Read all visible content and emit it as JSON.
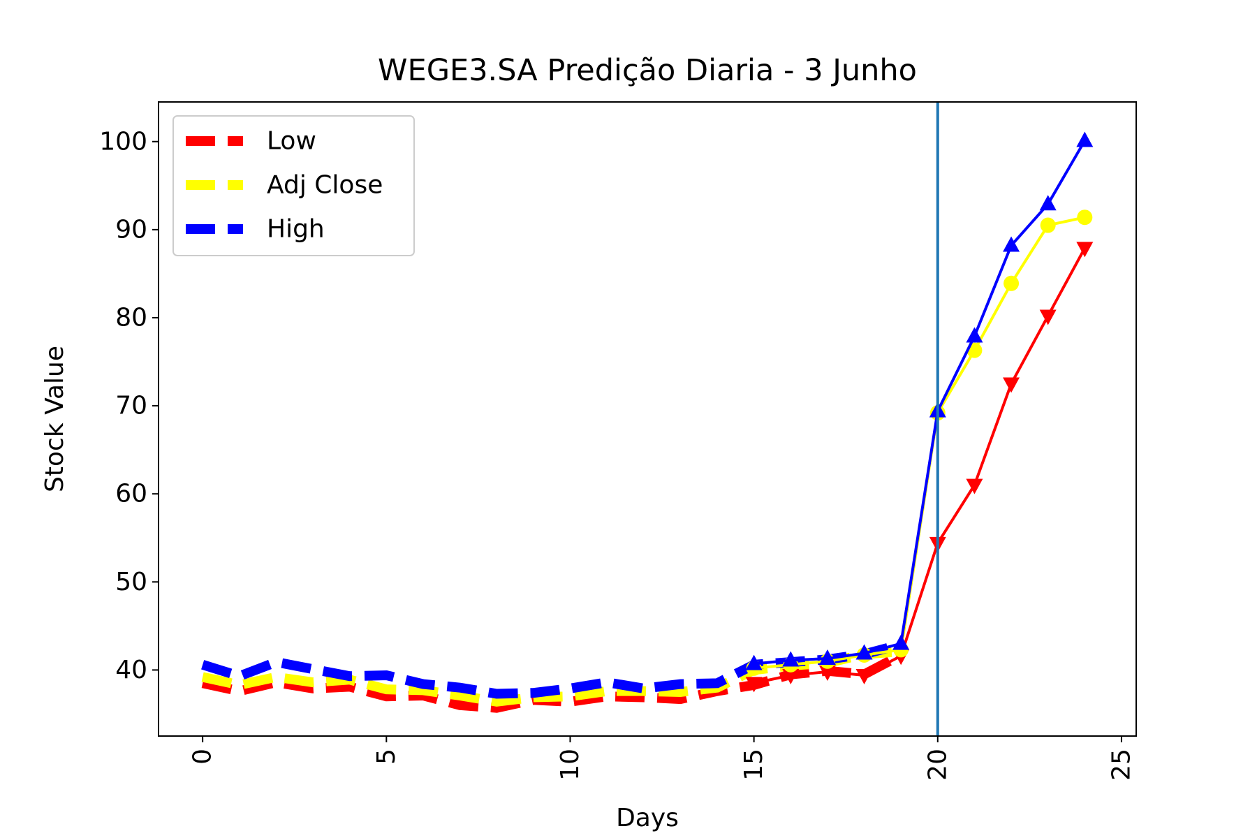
{
  "chart_data": {
    "type": "line",
    "title": "WEGE3.SA Predição Diaria - 3 Junho",
    "xlabel": "Days",
    "ylabel": "Stock Value",
    "xlim": [
      -1.2,
      25.4
    ],
    "ylim": [
      32.5,
      104.5
    ],
    "xticks": [
      0,
      5,
      10,
      15,
      20,
      25
    ],
    "yticks": [
      40,
      50,
      60,
      70,
      80,
      90,
      100
    ],
    "xtick_rotation": 90,
    "grid": false,
    "legend_position": "upper left",
    "vline": {
      "x": 20,
      "color": "#1f77b4"
    },
    "series": [
      {
        "name": "Low",
        "color": "#ff0000",
        "marker": "triangle-down",
        "history_x": [
          0,
          1,
          2,
          3,
          4,
          5,
          6,
          7,
          8,
          9,
          10,
          11,
          12,
          13,
          14,
          15,
          16,
          17,
          18,
          19
        ],
        "history_y": [
          38.5,
          37.6,
          38.6,
          37.9,
          38.1,
          37.0,
          37.1,
          36.0,
          35.7,
          36.6,
          36.4,
          37.0,
          36.9,
          36.7,
          37.6,
          38.3,
          39.5,
          39.9,
          39.5,
          41.7
        ],
        "pred_x": [
          15,
          16,
          17,
          18,
          19,
          20,
          21,
          22,
          23,
          24
        ],
        "pred_y": [
          38.5,
          39.4,
          39.8,
          39.4,
          41.6,
          54.4,
          61.0,
          72.5,
          80.2,
          87.9
        ]
      },
      {
        "name": "Adj Close",
        "color": "#ffff00",
        "marker": "circle",
        "history_x": [
          0,
          1,
          2,
          3,
          4,
          5,
          6,
          7,
          8,
          9,
          10,
          11,
          12,
          13,
          14,
          15,
          16,
          17,
          18,
          19
        ],
        "history_y": [
          39.2,
          38.3,
          39.2,
          38.6,
          38.9,
          37.8,
          37.7,
          37.1,
          36.4,
          36.9,
          37.0,
          37.6,
          37.6,
          37.5,
          38.0,
          40.0,
          40.5,
          40.8,
          41.8,
          42.1
        ],
        "pred_x": [
          15,
          16,
          17,
          18,
          19,
          20,
          21,
          22,
          23,
          24
        ],
        "pred_y": [
          40.2,
          40.6,
          41.0,
          41.7,
          42.3,
          69.2,
          76.3,
          83.9,
          90.5,
          91.4
        ]
      },
      {
        "name": "High",
        "color": "#0000ff",
        "marker": "triangle-up",
        "history_x": [
          0,
          1,
          2,
          3,
          4,
          5,
          6,
          7,
          8,
          9,
          10,
          11,
          12,
          13,
          14,
          15,
          16,
          17,
          18,
          19
        ],
        "history_y": [
          40.6,
          39.3,
          40.9,
          40.1,
          39.3,
          39.4,
          38.4,
          38.0,
          37.3,
          37.4,
          37.9,
          38.6,
          37.9,
          38.4,
          38.5,
          40.6,
          40.9,
          41.2,
          41.8,
          42.9
        ],
        "pred_x": [
          15,
          16,
          17,
          18,
          19,
          20,
          21,
          22,
          23,
          24
        ],
        "pred_y": [
          40.7,
          41.1,
          41.3,
          41.9,
          43.0,
          69.4,
          77.9,
          88.2,
          92.9,
          100.1
        ]
      }
    ]
  }
}
